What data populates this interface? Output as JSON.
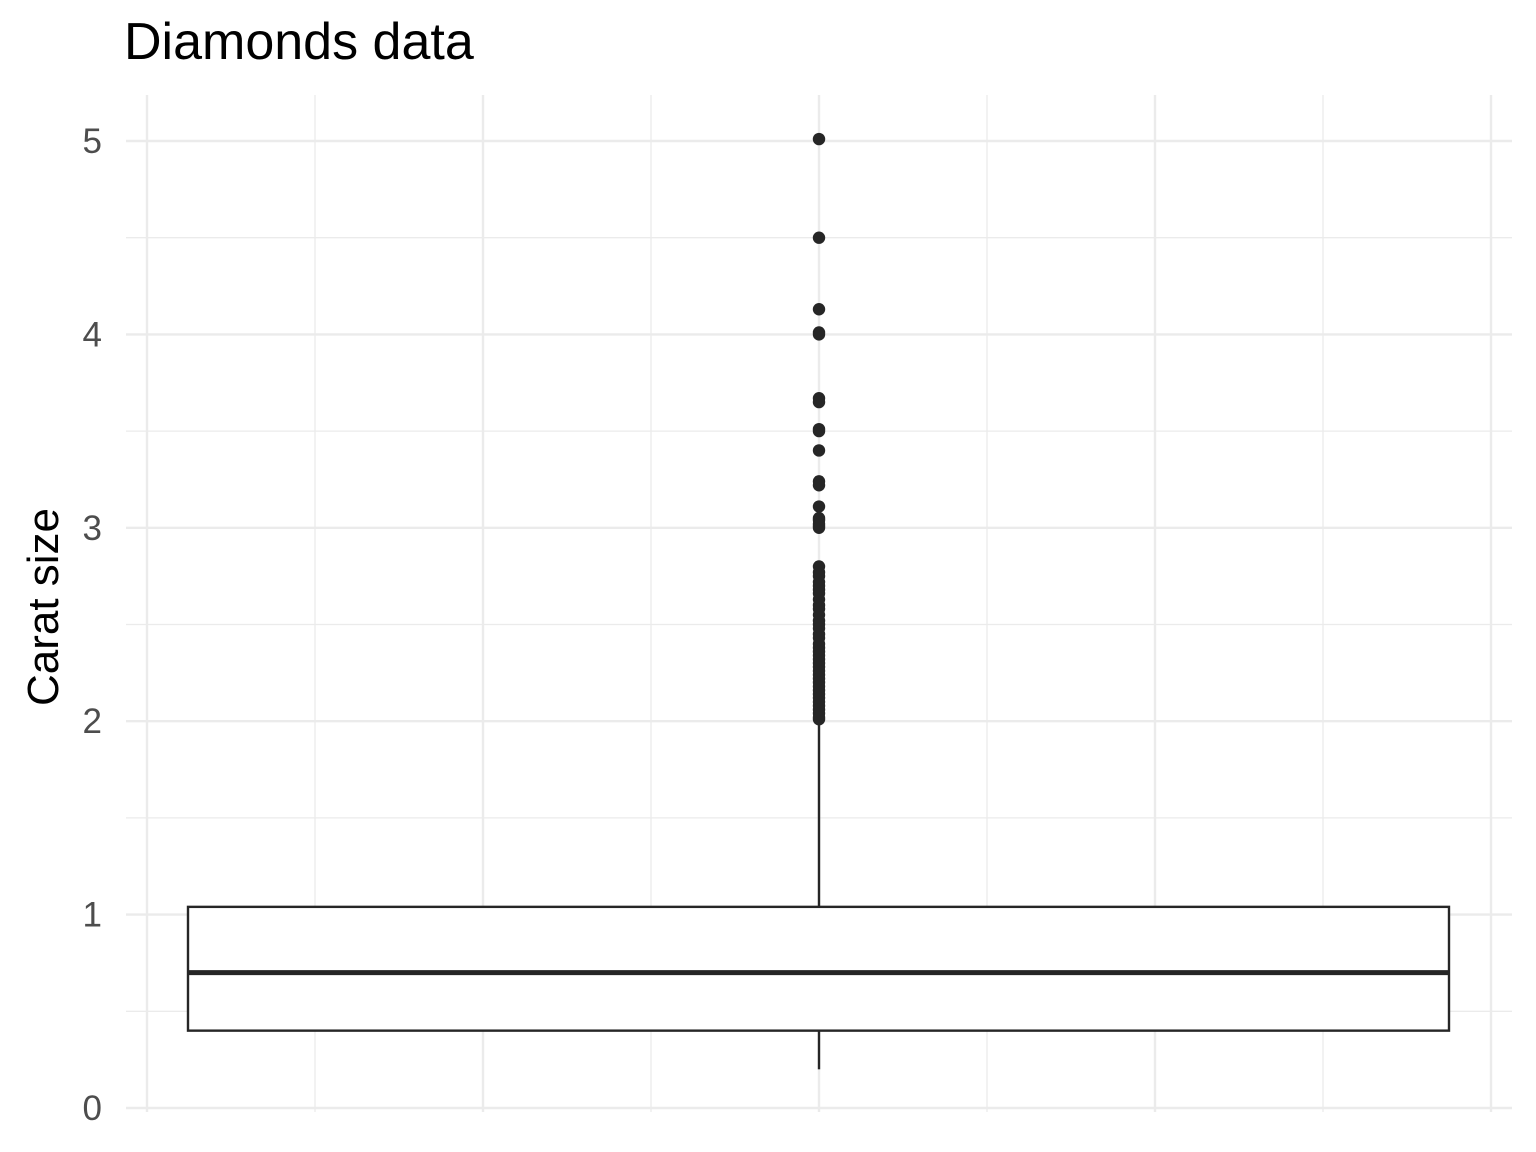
{
  "chart_data": {
    "type": "boxplot",
    "title": "Diamonds data",
    "xlabel": "",
    "ylabel": "Carat size",
    "ylim": [
      0,
      5.2
    ],
    "yticks": [
      "0",
      "1",
      "2",
      "3",
      "4",
      "5"
    ],
    "grid": true,
    "legend": "none",
    "box": {
      "min": 0.2,
      "q1": 0.4,
      "median": 0.7,
      "q3": 1.04,
      "whisker_high": 2.0,
      "whisker_low": 0.2
    },
    "outliers": [
      5.01,
      4.5,
      4.13,
      4.01,
      4.0,
      3.67,
      3.65,
      3.51,
      3.5,
      3.4,
      3.24,
      3.22,
      3.11,
      3.05,
      3.04,
      3.02,
      3.01,
      3.0,
      2.8,
      2.77,
      2.75,
      2.72,
      2.7,
      2.68,
      2.66,
      2.63,
      2.6,
      2.58,
      2.55,
      2.52,
      2.5,
      2.48,
      2.45,
      2.43,
      2.4,
      2.38,
      2.36,
      2.34,
      2.32,
      2.3,
      2.28,
      2.26,
      2.24,
      2.22,
      2.2,
      2.18,
      2.16,
      2.14,
      2.12,
      2.1,
      2.08,
      2.06,
      2.04,
      2.02,
      2.01
    ]
  },
  "colors": {
    "grid": "#ebebeb",
    "box_stroke": "#262626",
    "point": "#262626",
    "background": "#ffffff"
  }
}
